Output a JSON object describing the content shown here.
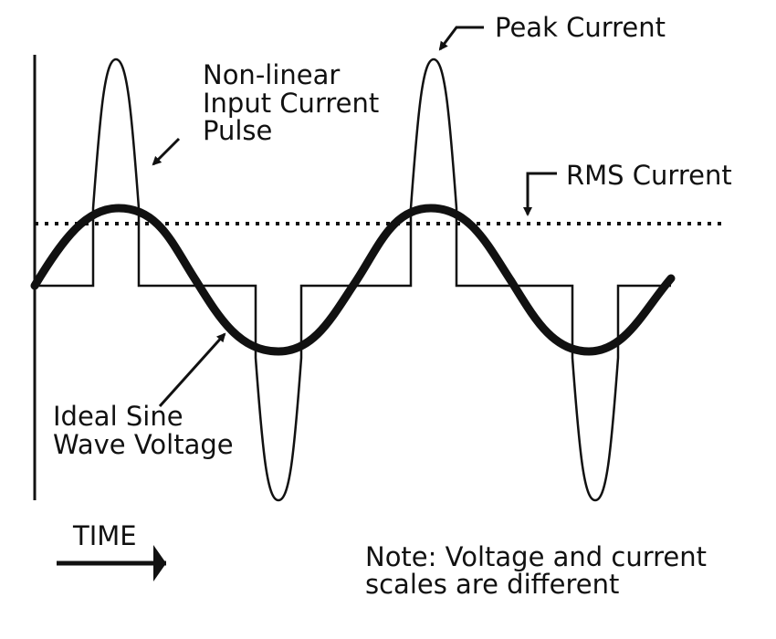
{
  "labels": {
    "peak_current": "Peak Current",
    "pulse": [
      "Non-linear",
      "Input Current",
      "Pulse"
    ],
    "rms_current": "RMS Current",
    "sine": [
      "Ideal Sine",
      "Wave Voltage"
    ],
    "time": "TIME",
    "note": [
      "Note: Voltage and current",
      "scales are different"
    ]
  }
}
